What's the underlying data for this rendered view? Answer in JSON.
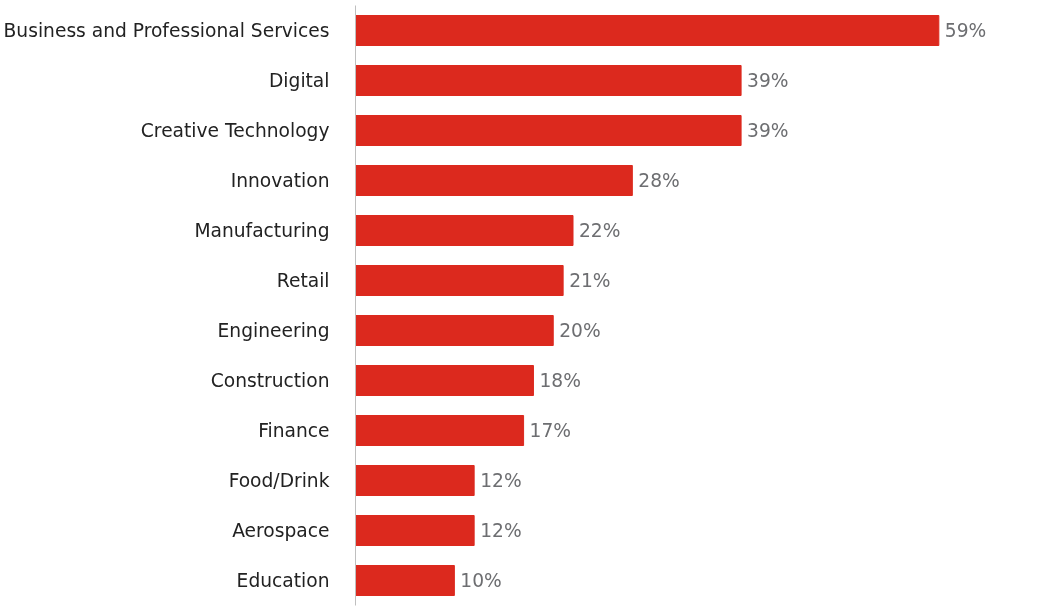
{
  "chart_data": {
    "type": "bar",
    "orientation": "horizontal",
    "categories": [
      "Business and Professional Services",
      "Digital",
      "Creative Technology",
      "Innovation",
      "Manufacturing",
      "Retail",
      "Engineering",
      "Construction",
      "Finance",
      "Food/Drink",
      "Aerospace",
      "Education"
    ],
    "values": [
      59,
      39,
      39,
      28,
      22,
      21,
      20,
      18,
      17,
      12,
      12,
      10
    ],
    "value_labels": [
      "59%",
      "39%",
      "39%",
      "28%",
      "22%",
      "21%",
      "20%",
      "18%",
      "17%",
      "12%",
      "12%",
      "10%"
    ],
    "color": "#dc291e",
    "tick_labels": "y"
  }
}
